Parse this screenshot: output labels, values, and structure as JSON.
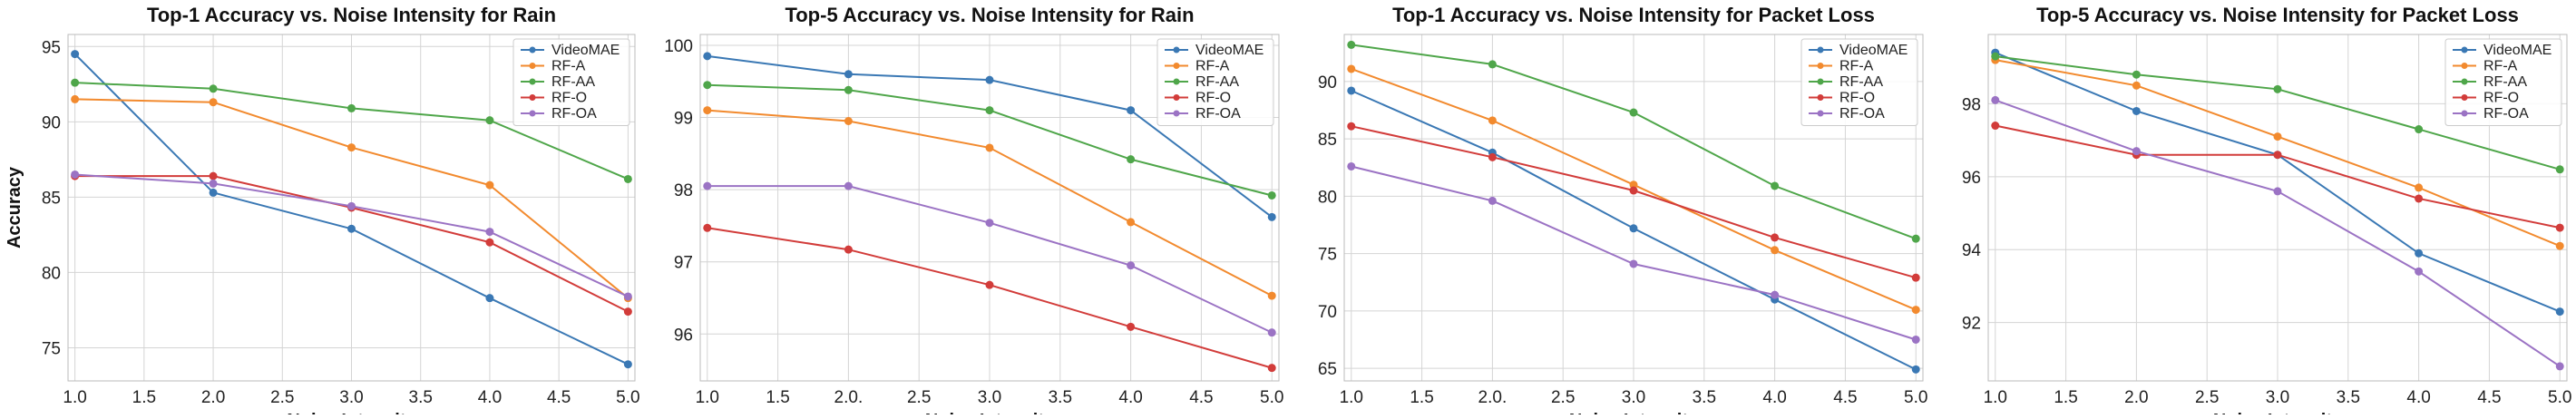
{
  "chart_data": [
    {
      "type": "line",
      "title": "Top-1 Accuracy vs. Noise Intensity for Rain",
      "xlabel": "Noise Intensity",
      "ylabel": "Accuracy",
      "xlim": [
        0.95,
        5.05
      ],
      "ylim": [
        72.8,
        95.8
      ],
      "xticks": [
        1.0,
        1.5,
        2.0,
        2.5,
        3.0,
        3.5,
        4.0,
        4.5,
        5.0
      ],
      "xtick_labels": [
        "1.0",
        "1.5",
        "2.0",
        "2.5",
        "3.0",
        "3.5",
        "4.0",
        "4.5",
        "5.0"
      ],
      "yticks": [
        75,
        80,
        85,
        90,
        95
      ],
      "ytick_labels": [
        "75",
        "80",
        "85",
        "90",
        "95"
      ],
      "grid": true,
      "legend": "top-right",
      "x": [
        1,
        2,
        3,
        4,
        5
      ],
      "series": [
        {
          "name": "VideoMAE",
          "color": "#3a78b4",
          "values": [
            94.5,
            85.3,
            82.9,
            78.3,
            73.9
          ]
        },
        {
          "name": "RF-A",
          "color": "#f28a2e",
          "values": [
            91.5,
            91.3,
            88.3,
            85.8,
            78.3
          ]
        },
        {
          "name": "RF-AA",
          "color": "#4fa64a",
          "values": [
            92.6,
            92.2,
            90.9,
            90.1,
            86.2
          ]
        },
        {
          "name": "RF-O",
          "color": "#d23c3a",
          "values": [
            86.4,
            86.4,
            84.3,
            82.0,
            77.4
          ]
        },
        {
          "name": "RF-OA",
          "color": "#9b73c4",
          "values": [
            86.5,
            85.9,
            84.4,
            82.7,
            78.4
          ]
        }
      ]
    },
    {
      "type": "line",
      "title": "Top-5 Accuracy vs. Noise Intensity for Rain",
      "xlabel": "Noise Intensity",
      "ylabel": "",
      "xlim": [
        0.95,
        5.05
      ],
      "ylim": [
        95.35,
        100.15
      ],
      "xticks": [
        1.0,
        1.5,
        2.0,
        2.5,
        3.0,
        3.5,
        4.0,
        4.5,
        5.0
      ],
      "xtick_labels": [
        "1.0",
        "1.5",
        "2.0.",
        "2.5",
        "3.0",
        "3.5",
        "4.0",
        "4.5",
        "5.0"
      ],
      "yticks": [
        96,
        97,
        98,
        99,
        100
      ],
      "ytick_labels": [
        "96",
        "97",
        "98",
        "99",
        "100"
      ],
      "grid": true,
      "legend": "top-right",
      "x": [
        1,
        2,
        3,
        4,
        5
      ],
      "series": [
        {
          "name": "VideoMAE",
          "color": "#3a78b4",
          "values": [
            99.85,
            99.6,
            99.52,
            99.1,
            97.62
          ]
        },
        {
          "name": "RF-A",
          "color": "#f28a2e",
          "values": [
            99.1,
            98.95,
            98.58,
            97.55,
            96.53
          ]
        },
        {
          "name": "RF-AA",
          "color": "#4fa64a",
          "values": [
            99.45,
            99.38,
            99.1,
            98.42,
            97.92
          ]
        },
        {
          "name": "RF-O",
          "color": "#d23c3a",
          "values": [
            97.47,
            97.17,
            96.68,
            96.1,
            95.53
          ]
        },
        {
          "name": "RF-OA",
          "color": "#9b73c4",
          "values": [
            98.05,
            98.05,
            97.54,
            96.95,
            96.02
          ]
        }
      ]
    },
    {
      "type": "line",
      "title": "Top-1 Accuracy vs. Noise Intensity for Packet Loss",
      "xlabel": "Noise Intensity",
      "ylabel": "",
      "xlim": [
        0.95,
        5.05
      ],
      "ylim": [
        63.9,
        94.1
      ],
      "xticks": [
        1.0,
        1.5,
        2.0,
        2.5,
        3.0,
        3.5,
        4.0,
        4.5,
        5.0
      ],
      "xtick_labels": [
        "1.0",
        "1.5",
        "2.0.",
        "2.5",
        "3.0",
        "3.5",
        "4.0",
        "4.5",
        "5.0"
      ],
      "yticks": [
        65,
        70,
        75,
        80,
        85,
        90
      ],
      "ytick_labels": [
        "65",
        "70",
        "75",
        "80",
        "85",
        "90"
      ],
      "grid": true,
      "legend": "top-right",
      "x": [
        1,
        2,
        3,
        4,
        5
      ],
      "series": [
        {
          "name": "VideoMAE",
          "color": "#3a78b4",
          "values": [
            89.2,
            83.8,
            77.2,
            71.0,
            64.9
          ]
        },
        {
          "name": "RF-A",
          "color": "#f28a2e",
          "values": [
            91.1,
            86.6,
            81.0,
            75.3,
            70.1
          ]
        },
        {
          "name": "RF-AA",
          "color": "#4fa64a",
          "values": [
            93.2,
            91.5,
            87.3,
            80.9,
            76.3
          ]
        },
        {
          "name": "RF-O",
          "color": "#d23c3a",
          "values": [
            86.1,
            83.4,
            80.5,
            76.4,
            72.9
          ]
        },
        {
          "name": "RF-OA",
          "color": "#9b73c4",
          "values": [
            82.6,
            79.6,
            74.1,
            71.4,
            67.5
          ]
        }
      ]
    },
    {
      "type": "line",
      "title": "Top-5 Accuracy vs. Noise Intensity for Packet Loss",
      "xlabel": "Noise Intensity",
      "ylabel": "",
      "xlim": [
        0.95,
        5.05
      ],
      "ylim": [
        90.4,
        99.9
      ],
      "xticks": [
        1.0,
        1.5,
        2.0,
        2.5,
        3.0,
        3.5,
        4.0,
        4.5,
        5.0
      ],
      "xtick_labels": [
        "1.0",
        "1.5",
        "2.0",
        "2.5",
        "3.0",
        "3.5",
        "4.0",
        "4.5",
        "5.0"
      ],
      "yticks": [
        92,
        94,
        96,
        98
      ],
      "ytick_labels": [
        "92",
        "94",
        "96",
        "98"
      ],
      "grid": true,
      "legend": "top-right",
      "x": [
        1,
        2,
        3,
        4,
        5
      ],
      "series": [
        {
          "name": "VideoMAE",
          "color": "#3a78b4",
          "values": [
            99.4,
            97.8,
            96.6,
            93.9,
            92.3
          ]
        },
        {
          "name": "RF-A",
          "color": "#f28a2e",
          "values": [
            99.2,
            98.5,
            97.1,
            95.7,
            94.1
          ]
        },
        {
          "name": "RF-AA",
          "color": "#4fa64a",
          "values": [
            99.3,
            98.8,
            98.4,
            97.3,
            96.2
          ]
        },
        {
          "name": "RF-O",
          "color": "#d23c3a",
          "values": [
            97.4,
            96.6,
            96.6,
            95.4,
            94.6
          ]
        },
        {
          "name": "RF-OA",
          "color": "#9b73c4",
          "values": [
            98.1,
            96.7,
            95.6,
            93.4,
            90.8
          ]
        }
      ]
    }
  ]
}
